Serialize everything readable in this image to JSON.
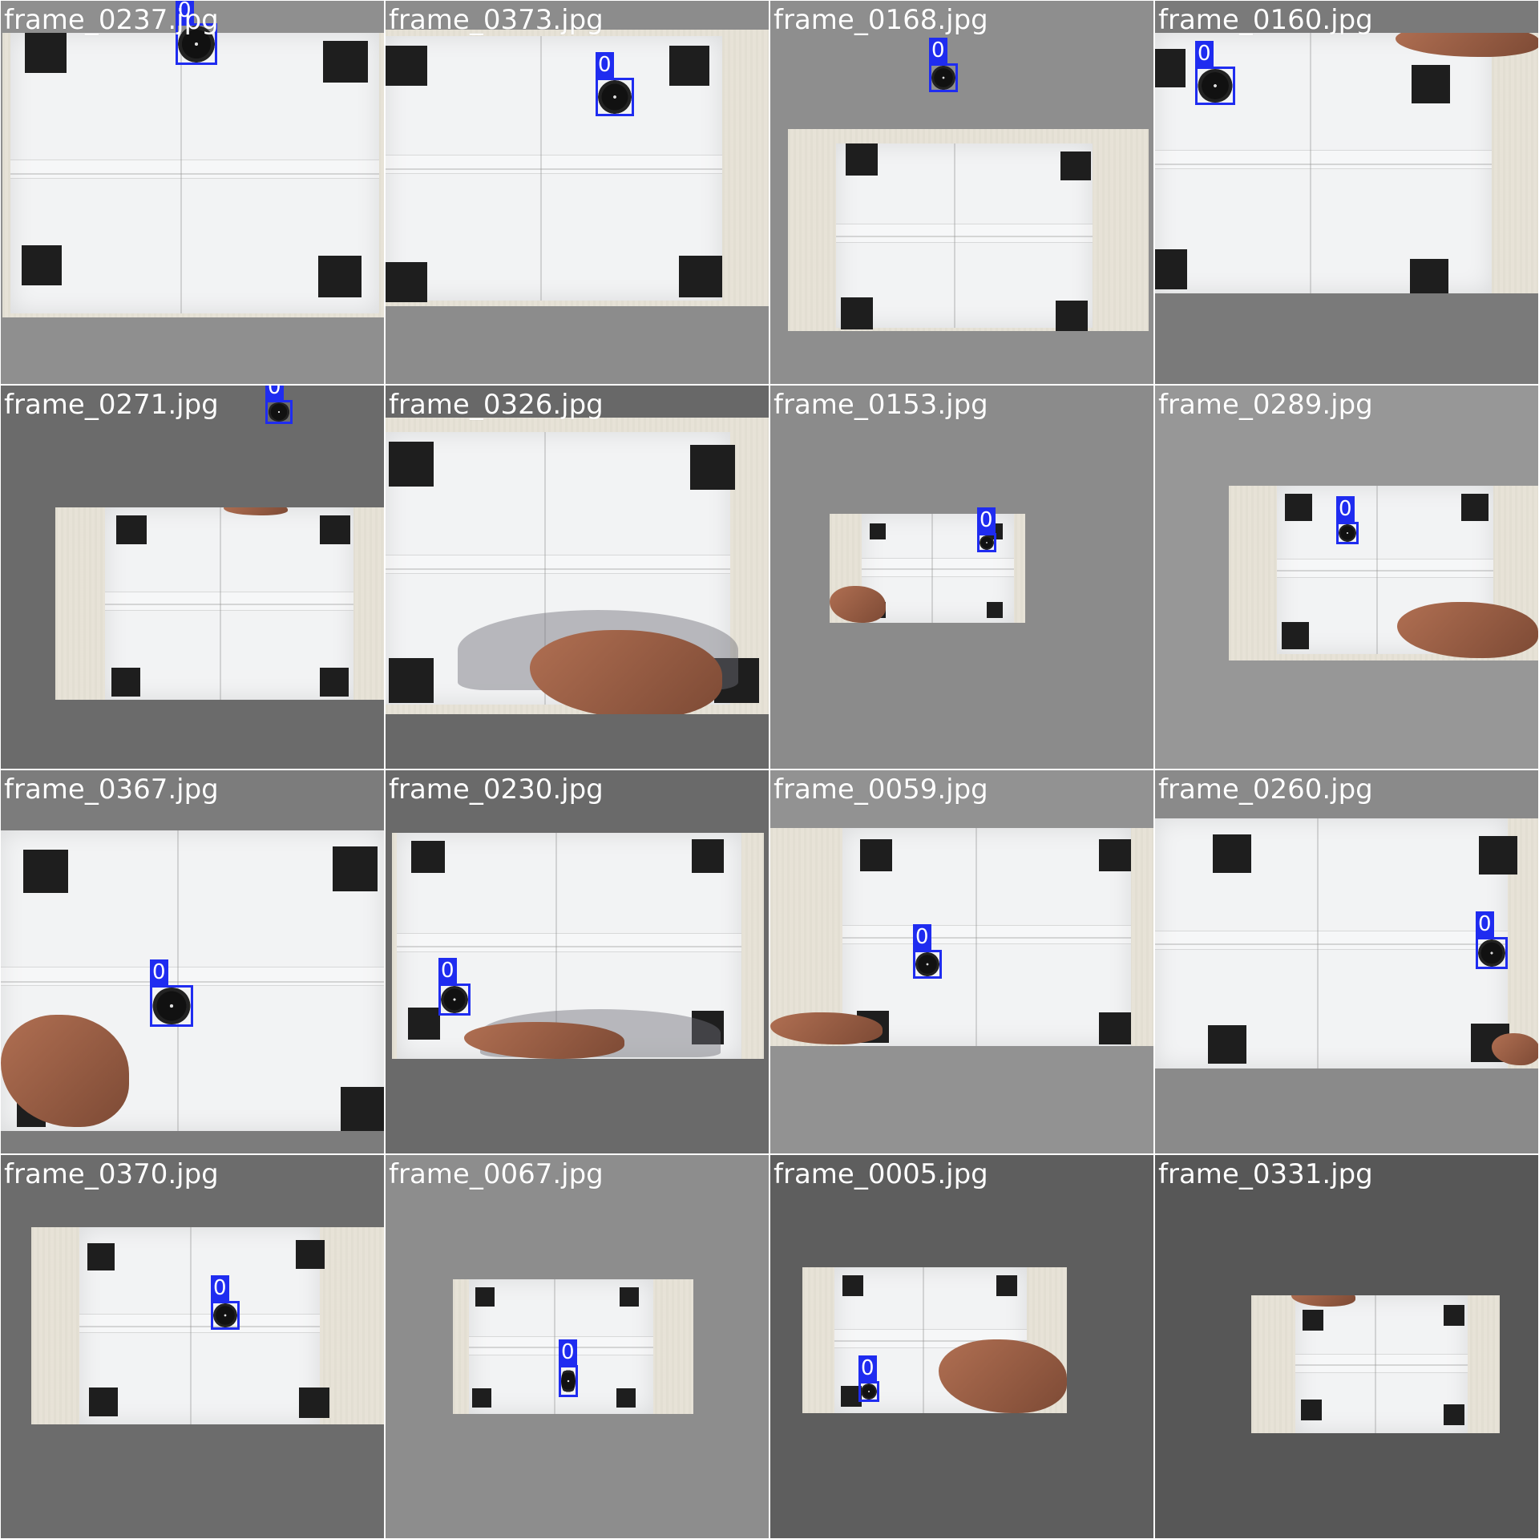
{
  "colors": {
    "box": "#1f2cf0",
    "label_text": "#ffffff",
    "grid_line": "#ffffff"
  },
  "tiles": [
    {
      "filename": "frame_0237.jpg",
      "bg": "#8f8f8f",
      "class_label": "0"
    },
    {
      "filename": "frame_0373.jpg",
      "bg": "#8c8c8c",
      "class_label": "0"
    },
    {
      "filename": "frame_0168.jpg",
      "bg": "#8e8e8e",
      "class_label": "0"
    },
    {
      "filename": "frame_0160.jpg",
      "bg": "#7a7a7a",
      "class_label": "0"
    },
    {
      "filename": "frame_0271.jpg",
      "bg": "#6b6b6b",
      "class_label": "0"
    },
    {
      "filename": "frame_0326.jpg",
      "bg": "#686868",
      "class_label": ""
    },
    {
      "filename": "frame_0153.jpg",
      "bg": "#8b8b8b",
      "class_label": "0"
    },
    {
      "filename": "frame_0289.jpg",
      "bg": "#979797",
      "class_label": "0"
    },
    {
      "filename": "frame_0367.jpg",
      "bg": "#7c7c7c",
      "class_label": "0"
    },
    {
      "filename": "frame_0230.jpg",
      "bg": "#6a6a6a",
      "class_label": "0"
    },
    {
      "filename": "frame_0059.jpg",
      "bg": "#929292",
      "class_label": "0"
    },
    {
      "filename": "frame_0260.jpg",
      "bg": "#8a8a8a",
      "class_label": "0"
    },
    {
      "filename": "frame_0370.jpg",
      "bg": "#6c6c6c",
      "class_label": "0"
    },
    {
      "filename": "frame_0067.jpg",
      "bg": "#8d8d8d",
      "class_label": "0"
    },
    {
      "filename": "frame_0005.jpg",
      "bg": "#5e5e5e",
      "class_label": "0"
    },
    {
      "filename": "frame_0331.jpg",
      "bg": "#575757",
      "class_label": ""
    }
  ]
}
